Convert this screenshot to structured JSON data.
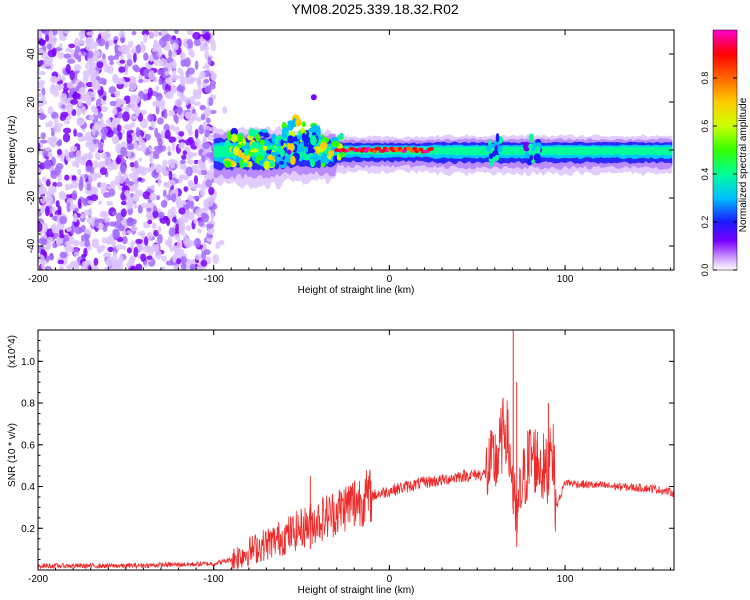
{
  "figure": {
    "title": "YM08.2025.339.18.32.R02"
  },
  "chart_data": [
    {
      "type": "heatmap",
      "xlabel": "Height of straight line (km)",
      "ylabel": "Frequency (Hz)",
      "xlim": [
        -200,
        162
      ],
      "ylim": [
        -50,
        50
      ],
      "xticks": [
        -200,
        -100,
        0,
        100
      ],
      "xtick_labels": [
        "-200",
        "-100",
        "0",
        "100"
      ],
      "yticks": [
        -40,
        -20,
        0,
        20,
        40
      ],
      "ytick_labels": [
        "-40",
        "-20",
        "0",
        "20",
        "40"
      ],
      "colorbar": {
        "label": "Normalized spectral amplitude",
        "range": [
          0,
          1
        ],
        "ticks": [
          0,
          0.2,
          0.4,
          0.6,
          0.8
        ],
        "tick_labels": [
          "0.0",
          "0.2",
          "0.4",
          "0.6",
          "0.8"
        ],
        "colors": [
          "#ffffff",
          "#cf9dff",
          "#7a00ff",
          "#1a1aff",
          "#00bfff",
          "#00ff99",
          "#33ff00",
          "#ccff00",
          "#ffcc00",
          "#ff6600",
          "#ff0000",
          "#ff00cc"
        ]
      },
      "signal_band": {
        "center_hz": 0,
        "noise_region_x": [
          -200,
          -100
        ],
        "band_start_x": -100,
        "peak_region_x": [
          -30,
          25
        ],
        "disturbances_x": [
          -60,
          -45,
          60,
          82
        ]
      }
    },
    {
      "type": "line",
      "xlabel": "Height of straight line (km)",
      "ylabel": "SNR (10 * v/v)",
      "yscale_label": "(x10^4)",
      "xlim": [
        -200,
        162
      ],
      "ylim": [
        0,
        1.15
      ],
      "xticks": [
        -200,
        -100,
        0,
        100
      ],
      "xtick_labels": [
        "-200",
        "-100",
        "0",
        "100"
      ],
      "yticks": [
        0.2,
        0.4,
        0.6,
        0.8,
        1.0
      ],
      "ytick_labels": [
        "0.2",
        "0.4",
        "0.6",
        "0.8",
        "1.0"
      ],
      "color": "#ee2b2b",
      "series": [
        {
          "name": "SNR",
          "x": [
            -200,
            -150,
            -100,
            -90,
            -80,
            -60,
            -45,
            -30,
            -20,
            0,
            10,
            20,
            30,
            40,
            55,
            62,
            66,
            70,
            72,
            75,
            80,
            85,
            90,
            92,
            95,
            100,
            110,
            130,
            150,
            162
          ],
          "y": [
            0.02,
            0.02,
            0.03,
            0.05,
            0.09,
            0.16,
            0.22,
            0.28,
            0.33,
            0.38,
            0.4,
            0.42,
            0.43,
            0.45,
            0.46,
            0.55,
            0.7,
            0.45,
            0.2,
            0.38,
            0.55,
            0.52,
            0.45,
            0.68,
            0.3,
            0.42,
            0.41,
            0.4,
            0.39,
            0.37
          ]
        }
      ],
      "spikes": [
        {
          "x": -45,
          "y": 0.45
        },
        {
          "x": -20,
          "y": 0.42
        },
        {
          "x": 61,
          "y": 0.6
        },
        {
          "x": 70.5,
          "y": 1.15
        },
        {
          "x": 72.5,
          "y": 0.9
        },
        {
          "x": 79.5,
          "y": 0.66
        },
        {
          "x": 84,
          "y": 0.62
        },
        {
          "x": 90.5,
          "y": 0.8
        }
      ]
    }
  ]
}
